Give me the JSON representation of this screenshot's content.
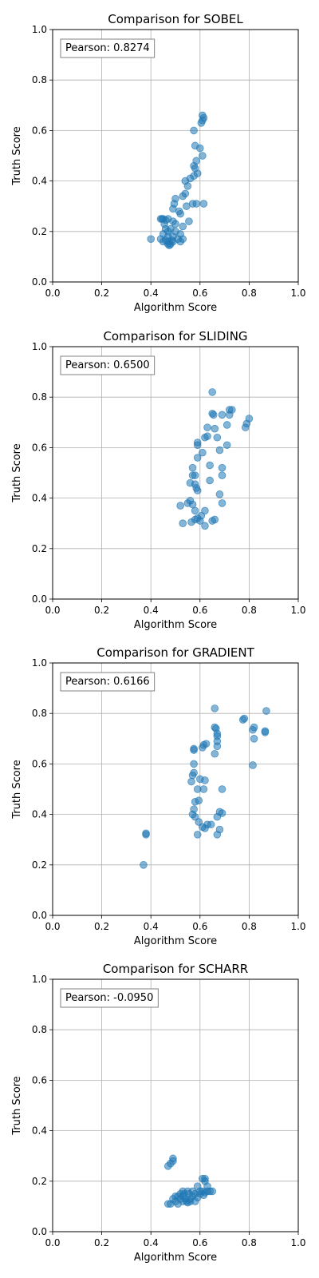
{
  "chart_data": [
    {
      "type": "scatter",
      "title": "Comparison for SOBEL",
      "xlabel": "Algorithm Score",
      "ylabel": "Truth Score",
      "xlim": [
        0,
        1
      ],
      "ylim": [
        0,
        1
      ],
      "xticks": [
        "0.0",
        "0.2",
        "0.4",
        "0.6",
        "0.8",
        "1.0"
      ],
      "yticks": [
        "0.0",
        "0.2",
        "0.4",
        "0.6",
        "0.8",
        "1.0"
      ],
      "grid": true,
      "annotation": "Pearson: 0.8274",
      "annotation_position": "top-left",
      "color": "#1f77b4",
      "points": [
        [
          0.61,
          0.66
        ],
        [
          0.615,
          0.65
        ],
        [
          0.61,
          0.64
        ],
        [
          0.605,
          0.63
        ],
        [
          0.575,
          0.6
        ],
        [
          0.58,
          0.54
        ],
        [
          0.6,
          0.53
        ],
        [
          0.61,
          0.5
        ],
        [
          0.585,
          0.48
        ],
        [
          0.575,
          0.46
        ],
        [
          0.58,
          0.45
        ],
        [
          0.59,
          0.43
        ],
        [
          0.575,
          0.42
        ],
        [
          0.56,
          0.41
        ],
        [
          0.54,
          0.4
        ],
        [
          0.55,
          0.38
        ],
        [
          0.54,
          0.35
        ],
        [
          0.53,
          0.34
        ],
        [
          0.5,
          0.33
        ],
        [
          0.495,
          0.31
        ],
        [
          0.57,
          0.31
        ],
        [
          0.585,
          0.31
        ],
        [
          0.615,
          0.31
        ],
        [
          0.545,
          0.3
        ],
        [
          0.49,
          0.29
        ],
        [
          0.515,
          0.28
        ],
        [
          0.52,
          0.27
        ],
        [
          0.555,
          0.24
        ],
        [
          0.44,
          0.25
        ],
        [
          0.445,
          0.25
        ],
        [
          0.45,
          0.25
        ],
        [
          0.46,
          0.245
        ],
        [
          0.47,
          0.25
        ],
        [
          0.455,
          0.23
        ],
        [
          0.49,
          0.24
        ],
        [
          0.5,
          0.23
        ],
        [
          0.53,
          0.22
        ],
        [
          0.46,
          0.21
        ],
        [
          0.48,
          0.21
        ],
        [
          0.47,
          0.2
        ],
        [
          0.5,
          0.2
        ],
        [
          0.52,
          0.19
        ],
        [
          0.45,
          0.19
        ],
        [
          0.49,
          0.18
        ],
        [
          0.47,
          0.18
        ],
        [
          0.4,
          0.17
        ],
        [
          0.44,
          0.17
        ],
        [
          0.45,
          0.16
        ],
        [
          0.46,
          0.165
        ],
        [
          0.47,
          0.16
        ],
        [
          0.485,
          0.165
        ],
        [
          0.49,
          0.16
        ],
        [
          0.51,
          0.17
        ],
        [
          0.53,
          0.17
        ],
        [
          0.47,
          0.15
        ],
        [
          0.475,
          0.145
        ],
        [
          0.48,
          0.15
        ],
        [
          0.52,
          0.16
        ]
      ]
    },
    {
      "type": "scatter",
      "title": "Comparison for SLIDING",
      "xlabel": "Algorithm Score",
      "ylabel": "Truth Score",
      "xlim": [
        0,
        1
      ],
      "ylim": [
        0,
        1
      ],
      "xticks": [
        "0.0",
        "0.2",
        "0.4",
        "0.6",
        "0.8",
        "1.0"
      ],
      "yticks": [
        "0.0",
        "0.2",
        "0.4",
        "0.6",
        "0.8",
        "1.0"
      ],
      "grid": true,
      "annotation": "Pearson: 0.6500",
      "annotation_position": "top-left",
      "color": "#1f77b4",
      "points": [
        [
          0.65,
          0.82
        ],
        [
          0.72,
          0.75
        ],
        [
          0.73,
          0.75
        ],
        [
          0.65,
          0.735
        ],
        [
          0.655,
          0.73
        ],
        [
          0.69,
          0.73
        ],
        [
          0.72,
          0.73
        ],
        [
          0.8,
          0.715
        ],
        [
          0.79,
          0.695
        ],
        [
          0.785,
          0.68
        ],
        [
          0.71,
          0.69
        ],
        [
          0.63,
          0.68
        ],
        [
          0.66,
          0.675
        ],
        [
          0.63,
          0.645
        ],
        [
          0.62,
          0.64
        ],
        [
          0.67,
          0.64
        ],
        [
          0.59,
          0.62
        ],
        [
          0.59,
          0.61
        ],
        [
          0.71,
          0.61
        ],
        [
          0.68,
          0.59
        ],
        [
          0.61,
          0.58
        ],
        [
          0.59,
          0.56
        ],
        [
          0.64,
          0.53
        ],
        [
          0.69,
          0.52
        ],
        [
          0.57,
          0.52
        ],
        [
          0.57,
          0.49
        ],
        [
          0.58,
          0.49
        ],
        [
          0.69,
          0.49
        ],
        [
          0.64,
          0.47
        ],
        [
          0.56,
          0.46
        ],
        [
          0.58,
          0.455
        ],
        [
          0.585,
          0.44
        ],
        [
          0.59,
          0.43
        ],
        [
          0.68,
          0.415
        ],
        [
          0.56,
          0.39
        ],
        [
          0.55,
          0.38
        ],
        [
          0.52,
          0.37
        ],
        [
          0.57,
          0.375
        ],
        [
          0.69,
          0.38
        ],
        [
          0.58,
          0.35
        ],
        [
          0.62,
          0.35
        ],
        [
          0.605,
          0.33
        ],
        [
          0.59,
          0.32
        ],
        [
          0.58,
          0.315
        ],
        [
          0.6,
          0.31
        ],
        [
          0.565,
          0.305
        ],
        [
          0.65,
          0.31
        ],
        [
          0.66,
          0.315
        ],
        [
          0.53,
          0.3
        ],
        [
          0.62,
          0.29
        ]
      ]
    },
    {
      "type": "scatter",
      "title": "Comparison for GRADIENT",
      "xlabel": "Algorithm Score",
      "ylabel": "Truth Score",
      "xlim": [
        0,
        1
      ],
      "ylim": [
        0,
        1
      ],
      "xticks": [
        "0.0",
        "0.2",
        "0.4",
        "0.6",
        "0.8",
        "1.0"
      ],
      "yticks": [
        "0.0",
        "0.2",
        "0.4",
        "0.6",
        "0.8",
        "1.0"
      ],
      "grid": true,
      "annotation": "Pearson: 0.6166",
      "annotation_position": "top-left",
      "color": "#1f77b4",
      "points": [
        [
          0.66,
          0.82
        ],
        [
          0.87,
          0.81
        ],
        [
          0.78,
          0.78
        ],
        [
          0.775,
          0.775
        ],
        [
          0.66,
          0.745
        ],
        [
          0.82,
          0.745
        ],
        [
          0.665,
          0.74
        ],
        [
          0.815,
          0.735
        ],
        [
          0.865,
          0.73
        ],
        [
          0.865,
          0.725
        ],
        [
          0.67,
          0.72
        ],
        [
          0.67,
          0.71
        ],
        [
          0.82,
          0.7
        ],
        [
          0.67,
          0.69
        ],
        [
          0.625,
          0.68
        ],
        [
          0.615,
          0.675
        ],
        [
          0.61,
          0.665
        ],
        [
          0.67,
          0.67
        ],
        [
          0.575,
          0.66
        ],
        [
          0.575,
          0.655
        ],
        [
          0.66,
          0.64
        ],
        [
          0.575,
          0.6
        ],
        [
          0.815,
          0.595
        ],
        [
          0.575,
          0.565
        ],
        [
          0.57,
          0.555
        ],
        [
          0.6,
          0.54
        ],
        [
          0.62,
          0.535
        ],
        [
          0.565,
          0.53
        ],
        [
          0.69,
          0.5
        ],
        [
          0.59,
          0.5
        ],
        [
          0.615,
          0.5
        ],
        [
          0.595,
          0.455
        ],
        [
          0.58,
          0.45
        ],
        [
          0.575,
          0.42
        ],
        [
          0.68,
          0.41
        ],
        [
          0.69,
          0.405
        ],
        [
          0.57,
          0.4
        ],
        [
          0.58,
          0.39
        ],
        [
          0.67,
          0.39
        ],
        [
          0.595,
          0.37
        ],
        [
          0.63,
          0.36
        ],
        [
          0.645,
          0.36
        ],
        [
          0.61,
          0.35
        ],
        [
          0.62,
          0.345
        ],
        [
          0.68,
          0.34
        ],
        [
          0.59,
          0.32
        ],
        [
          0.67,
          0.32
        ],
        [
          0.38,
          0.325
        ],
        [
          0.38,
          0.32
        ],
        [
          0.37,
          0.2
        ]
      ]
    },
    {
      "type": "scatter",
      "title": "Comparison for SCHARR",
      "xlabel": "Algorithm Score",
      "ylabel": "Truth Score",
      "xlim": [
        0,
        1
      ],
      "ylim": [
        0,
        1
      ],
      "xticks": [
        "0.0",
        "0.2",
        "0.4",
        "0.6",
        "0.8",
        "1.0"
      ],
      "yticks": [
        "0.0",
        "0.2",
        "0.4",
        "0.6",
        "0.8",
        "1.0"
      ],
      "grid": true,
      "annotation": "Pearson: -0.0950",
      "annotation_position": "top-left",
      "color": "#1f77b4",
      "points": [
        [
          0.49,
          0.29
        ],
        [
          0.49,
          0.28
        ],
        [
          0.48,
          0.27
        ],
        [
          0.47,
          0.26
        ],
        [
          0.61,
          0.21
        ],
        [
          0.62,
          0.21
        ],
        [
          0.62,
          0.2
        ],
        [
          0.59,
          0.18
        ],
        [
          0.63,
          0.18
        ],
        [
          0.53,
          0.16
        ],
        [
          0.55,
          0.16
        ],
        [
          0.57,
          0.16
        ],
        [
          0.6,
          0.16
        ],
        [
          0.61,
          0.16
        ],
        [
          0.62,
          0.155
        ],
        [
          0.63,
          0.16
        ],
        [
          0.64,
          0.16
        ],
        [
          0.65,
          0.16
        ],
        [
          0.52,
          0.15
        ],
        [
          0.535,
          0.15
        ],
        [
          0.555,
          0.15
        ],
        [
          0.58,
          0.15
        ],
        [
          0.6,
          0.15
        ],
        [
          0.615,
          0.145
        ],
        [
          0.5,
          0.14
        ],
        [
          0.51,
          0.14
        ],
        [
          0.53,
          0.14
        ],
        [
          0.57,
          0.14
        ],
        [
          0.59,
          0.135
        ],
        [
          0.49,
          0.13
        ],
        [
          0.52,
          0.13
        ],
        [
          0.54,
          0.13
        ],
        [
          0.56,
          0.13
        ],
        [
          0.5,
          0.12
        ],
        [
          0.53,
          0.12
        ],
        [
          0.545,
          0.12
        ],
        [
          0.56,
          0.12
        ],
        [
          0.58,
          0.12
        ],
        [
          0.47,
          0.11
        ],
        [
          0.48,
          0.11
        ],
        [
          0.51,
          0.11
        ],
        [
          0.55,
          0.115
        ]
      ]
    }
  ]
}
